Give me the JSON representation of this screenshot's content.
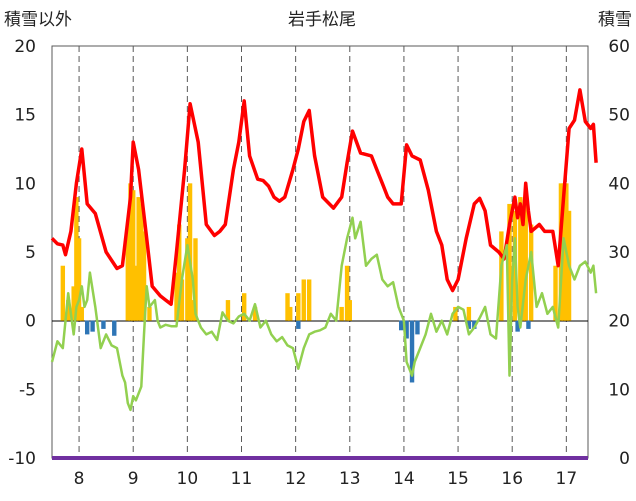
{
  "chart_data": {
    "type": "line",
    "title": "岩手松尾",
    "ylabel_left": "積雪以外",
    "ylabel_right": "積雪",
    "ylim_left": [
      -10,
      20
    ],
    "ylim_right": [
      0,
      60
    ],
    "yticks_left": [
      "20",
      "15",
      "10",
      "5",
      "0",
      "-5",
      "-10"
    ],
    "yticks_right": [
      "60",
      "50",
      "40",
      "30",
      "20",
      "10",
      "0"
    ],
    "xlim": [
      7.5,
      17.4
    ],
    "xticks": [
      "8",
      "9",
      "10",
      "11",
      "12",
      "13",
      "14",
      "15",
      "16",
      "17"
    ],
    "grid": "vertical-dashed",
    "series": [
      {
        "axis": "left",
        "color": "#ff0000",
        "points": [
          [
            7.5,
            6
          ],
          [
            7.6,
            5.6
          ],
          [
            7.7,
            5.5
          ],
          [
            7.75,
            4.8
          ],
          [
            7.85,
            6.5
          ],
          [
            7.95,
            10
          ],
          [
            8.05,
            12.5
          ],
          [
            8.15,
            8.5
          ],
          [
            8.3,
            7.8
          ],
          [
            8.5,
            5
          ],
          [
            8.7,
            3.8
          ],
          [
            8.8,
            4
          ],
          [
            8.95,
            9
          ],
          [
            9,
            13
          ],
          [
            9.1,
            11
          ],
          [
            9.25,
            6
          ],
          [
            9.35,
            2.5
          ],
          [
            9.5,
            1.8
          ],
          [
            9.6,
            1.5
          ],
          [
            9.7,
            1.2
          ],
          [
            9.8,
            5
          ],
          [
            9.95,
            11
          ],
          [
            10.05,
            15.8
          ],
          [
            10.2,
            13
          ],
          [
            10.35,
            7
          ],
          [
            10.5,
            6.2
          ],
          [
            10.6,
            6.5
          ],
          [
            10.7,
            7
          ],
          [
            10.85,
            11
          ],
          [
            10.95,
            13
          ],
          [
            11.05,
            16
          ],
          [
            11.15,
            12
          ],
          [
            11.3,
            10.3
          ],
          [
            11.4,
            10.2
          ],
          [
            11.5,
            9.8
          ],
          [
            11.6,
            9
          ],
          [
            11.7,
            8.7
          ],
          [
            11.8,
            9
          ],
          [
            11.95,
            11
          ],
          [
            12.05,
            12.5
          ],
          [
            12.15,
            14.5
          ],
          [
            12.25,
            15.3
          ],
          [
            12.35,
            12
          ],
          [
            12.5,
            9
          ],
          [
            12.7,
            8.2
          ],
          [
            12.85,
            9
          ],
          [
            12.95,
            11.5
          ],
          [
            13.05,
            13.8
          ],
          [
            13.2,
            12.2
          ],
          [
            13.4,
            12
          ],
          [
            13.5,
            11
          ],
          [
            13.6,
            10
          ],
          [
            13.7,
            9
          ],
          [
            13.8,
            8.5
          ],
          [
            13.95,
            8.5
          ],
          [
            14.05,
            12.8
          ],
          [
            14.15,
            12
          ],
          [
            14.3,
            11.7
          ],
          [
            14.45,
            9.5
          ],
          [
            14.6,
            6.5
          ],
          [
            14.7,
            5.5
          ],
          [
            14.8,
            3
          ],
          [
            14.9,
            2.2
          ],
          [
            15,
            3
          ],
          [
            15.15,
            6
          ],
          [
            15.3,
            8.5
          ],
          [
            15.4,
            8.9
          ],
          [
            15.5,
            8
          ],
          [
            15.6,
            5.5
          ],
          [
            15.75,
            5
          ],
          [
            15.85,
            4.5
          ],
          [
            15.95,
            7
          ],
          [
            16.05,
            9
          ],
          [
            16.1,
            7.5
          ],
          [
            16.15,
            8.5
          ],
          [
            16.2,
            7
          ],
          [
            16.25,
            10
          ],
          [
            16.3,
            8
          ],
          [
            16.35,
            6.5
          ],
          [
            16.5,
            7
          ],
          [
            16.6,
            6.5
          ],
          [
            16.75,
            6.5
          ],
          [
            16.85,
            4
          ],
          [
            16.95,
            9
          ],
          [
            17.05,
            14
          ],
          [
            17.15,
            14.6
          ],
          [
            17.25,
            16.8
          ],
          [
            17.35,
            14.5
          ],
          [
            17.45,
            14
          ],
          [
            17.5,
            14.3
          ],
          [
            17.55,
            11.5
          ]
        ]
      },
      {
        "axis": "left",
        "color": "#92d050",
        "points": [
          [
            7.5,
            -3
          ],
          [
            7.6,
            -1.5
          ],
          [
            7.7,
            -2
          ],
          [
            7.8,
            2
          ],
          [
            7.85,
            0.5
          ],
          [
            7.9,
            -1
          ],
          [
            7.95,
            1
          ],
          [
            8,
            1.5
          ],
          [
            8.05,
            2.5
          ],
          [
            8.1,
            1
          ],
          [
            8.15,
            1.5
          ],
          [
            8.2,
            3.5
          ],
          [
            8.3,
            1
          ],
          [
            8.4,
            -2
          ],
          [
            8.5,
            -1
          ],
          [
            8.6,
            -1.8
          ],
          [
            8.7,
            -2
          ],
          [
            8.8,
            -4
          ],
          [
            8.85,
            -4.5
          ],
          [
            8.9,
            -6
          ],
          [
            8.95,
            -6.5
          ],
          [
            9,
            -5.5
          ],
          [
            9.05,
            -5.8
          ],
          [
            9.15,
            -4.8
          ],
          [
            9.2,
            -1
          ],
          [
            9.25,
            2.5
          ],
          [
            9.3,
            1
          ],
          [
            9.4,
            1.5
          ],
          [
            9.45,
            0
          ],
          [
            9.5,
            -0.5
          ],
          [
            9.6,
            -0.3
          ],
          [
            9.7,
            -0.4
          ],
          [
            9.8,
            -0.4
          ],
          [
            9.9,
            3
          ],
          [
            10,
            5.5
          ],
          [
            10.1,
            3
          ],
          [
            10.15,
            0.5
          ],
          [
            10.25,
            -0.5
          ],
          [
            10.35,
            -1
          ],
          [
            10.45,
            -0.8
          ],
          [
            10.55,
            -1.4
          ],
          [
            10.65,
            0.6
          ],
          [
            10.75,
            0
          ],
          [
            10.85,
            -0.2
          ],
          [
            10.95,
            0.3
          ],
          [
            11.05,
            0.5
          ],
          [
            11.15,
            0
          ],
          [
            11.25,
            1.2
          ],
          [
            11.35,
            -0.5
          ],
          [
            11.45,
            0
          ],
          [
            11.55,
            -1
          ],
          [
            11.65,
            -1.5
          ],
          [
            11.75,
            -1.2
          ],
          [
            11.85,
            -1.8
          ],
          [
            11.95,
            -2
          ],
          [
            12.05,
            -3.5
          ],
          [
            12.15,
            -2
          ],
          [
            12.25,
            -1
          ],
          [
            12.35,
            -0.8
          ],
          [
            12.45,
            -0.7
          ],
          [
            12.55,
            -0.5
          ],
          [
            12.65,
            0.5
          ],
          [
            12.75,
            0
          ],
          [
            12.85,
            4
          ],
          [
            12.95,
            6
          ],
          [
            13.05,
            7.5
          ],
          [
            13.1,
            6
          ],
          [
            13.2,
            7.2
          ],
          [
            13.3,
            4
          ],
          [
            13.4,
            4.5
          ],
          [
            13.5,
            4.8
          ],
          [
            13.6,
            3
          ],
          [
            13.7,
            2.5
          ],
          [
            13.8,
            2.8
          ],
          [
            13.9,
            1
          ],
          [
            14,
            0
          ],
          [
            14.05,
            -3
          ],
          [
            14.1,
            -3.5
          ],
          [
            14.15,
            -4
          ],
          [
            14.2,
            -3
          ],
          [
            14.3,
            -2
          ],
          [
            14.4,
            -1
          ],
          [
            14.5,
            0.5
          ],
          [
            14.6,
            -0.8
          ],
          [
            14.7,
            0
          ],
          [
            14.8,
            -1
          ],
          [
            14.9,
            0.5
          ],
          [
            15,
            1
          ],
          [
            15.1,
            0.8
          ],
          [
            15.2,
            -1
          ],
          [
            15.3,
            -0.5
          ],
          [
            15.4,
            0.2
          ],
          [
            15.5,
            1
          ],
          [
            15.6,
            -1
          ],
          [
            15.7,
            -1.3
          ],
          [
            15.8,
            4
          ],
          [
            15.9,
            5.5
          ],
          [
            15.95,
            -4
          ],
          [
            16,
            3
          ],
          [
            16.05,
            6
          ],
          [
            16.1,
            1
          ],
          [
            16.15,
            -0.5
          ],
          [
            16.25,
            3
          ],
          [
            16.35,
            5
          ],
          [
            16.45,
            1
          ],
          [
            16.55,
            2
          ],
          [
            16.65,
            0.5
          ],
          [
            16.75,
            1
          ],
          [
            16.85,
            -0.5
          ],
          [
            16.95,
            6
          ],
          [
            17.05,
            4
          ],
          [
            17.15,
            3
          ],
          [
            17.25,
            4
          ],
          [
            17.35,
            4.3
          ],
          [
            17.45,
            3.5
          ],
          [
            17.5,
            4
          ],
          [
            17.55,
            2
          ]
        ]
      }
    ],
    "bars": [
      {
        "axis": "left",
        "color": "#ffc000",
        "points": [
          [
            7.7,
            4
          ],
          [
            7.8,
            1.5
          ],
          [
            7.9,
            2.5
          ],
          [
            7.95,
            9
          ],
          [
            8,
            6
          ],
          [
            8.05,
            1
          ],
          [
            8.9,
            7
          ],
          [
            8.95,
            10
          ],
          [
            9,
            9.5
          ],
          [
            9.05,
            4
          ],
          [
            9.1,
            9
          ],
          [
            9.15,
            8.5
          ],
          [
            9.2,
            6.5
          ],
          [
            9.3,
            1
          ],
          [
            9.8,
            3.5
          ],
          [
            9.85,
            7
          ],
          [
            9.9,
            3
          ],
          [
            10,
            6
          ],
          [
            10.05,
            10
          ],
          [
            10.1,
            1.5
          ],
          [
            10.15,
            6
          ],
          [
            10.75,
            1.5
          ],
          [
            11.05,
            2
          ],
          [
            11.25,
            1
          ],
          [
            11.85,
            2
          ],
          [
            11.9,
            1
          ],
          [
            12.05,
            2
          ],
          [
            12.15,
            3
          ],
          [
            12.25,
            3
          ],
          [
            12.85,
            1
          ],
          [
            12.95,
            4
          ],
          [
            13,
            1.5
          ],
          [
            14.95,
            1
          ],
          [
            15.2,
            1
          ],
          [
            15.8,
            6.5
          ],
          [
            15.95,
            8.5
          ],
          [
            16.05,
            8
          ],
          [
            16.15,
            9
          ],
          [
            16.2,
            7
          ],
          [
            16.25,
            9
          ],
          [
            16.35,
            7
          ],
          [
            16.8,
            4
          ],
          [
            16.9,
            10
          ],
          [
            16.95,
            10
          ],
          [
            17,
            10
          ],
          [
            17.05,
            8
          ]
        ]
      },
      {
        "axis": "left",
        "color": "#2e75b6",
        "points": [
          [
            8.15,
            -1
          ],
          [
            8.25,
            -0.8
          ],
          [
            8.45,
            -0.6
          ],
          [
            8.65,
            -1.1
          ],
          [
            12.05,
            -0.6
          ],
          [
            13.95,
            -0.7
          ],
          [
            14.05,
            -1.3
          ],
          [
            14.15,
            -4.5
          ],
          [
            14.25,
            -1
          ],
          [
            15.2,
            -0.6
          ],
          [
            15.3,
            -0.6
          ],
          [
            16.1,
            -0.8
          ],
          [
            16.3,
            -0.6
          ]
        ]
      }
    ],
    "colors": {
      "baseline": "#7030a0",
      "grid": "#595959"
    }
  }
}
